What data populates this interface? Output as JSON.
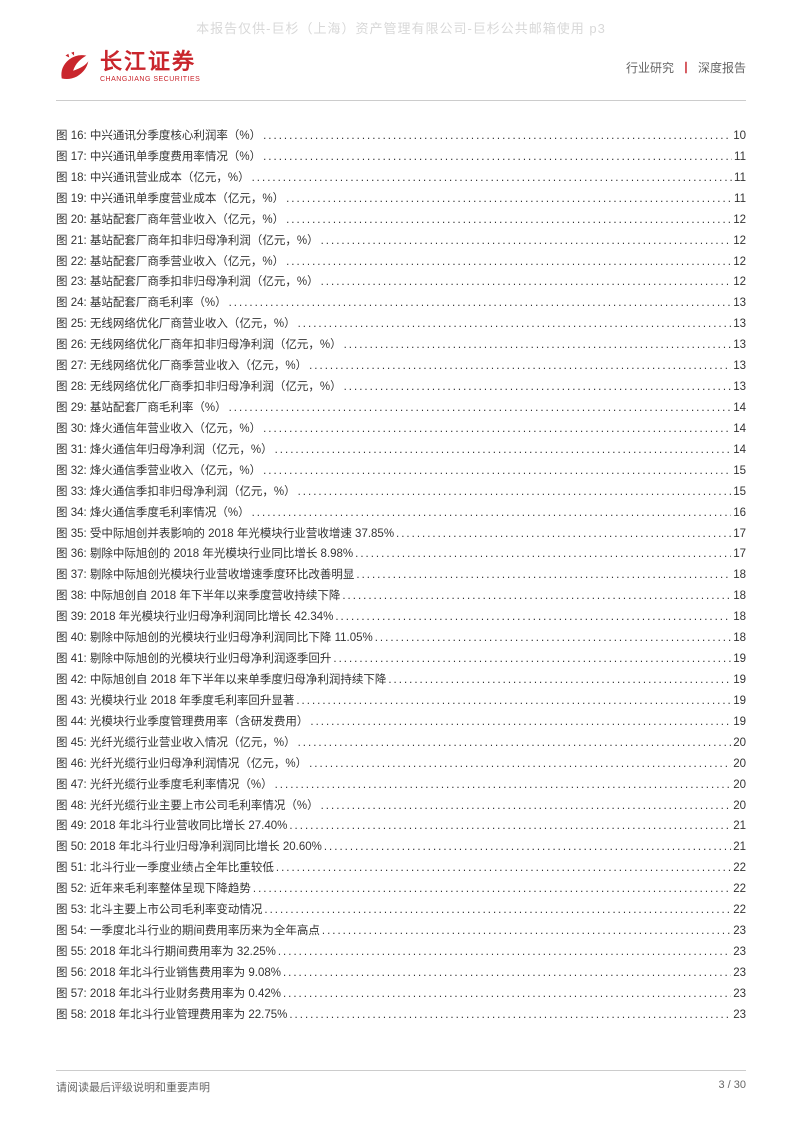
{
  "watermark": "本报告仅供-巨杉（上海）资产管理有限公司-巨杉公共邮箱使用 p3",
  "logo": {
    "cn": "长江证券",
    "en": "CHANGJIANG SECURITIES"
  },
  "header": {
    "left": "行业研究",
    "right": "深度报告"
  },
  "footer": {
    "left": "请阅读最后评级说明和重要声明",
    "right": "3 / 30"
  },
  "toc": [
    {
      "label": "图 16: 中兴通讯分季度核心利润率（%）",
      "page": "10"
    },
    {
      "label": "图 17: 中兴通讯单季度费用率情况（%）",
      "page": "11"
    },
    {
      "label": "图 18: 中兴通讯营业成本（亿元，%）",
      "page": "11"
    },
    {
      "label": "图 19: 中兴通讯单季度营业成本（亿元，%）",
      "page": "11"
    },
    {
      "label": "图 20: 基站配套厂商年营业收入（亿元，%）",
      "page": "12"
    },
    {
      "label": "图 21: 基站配套厂商年扣非归母净利润（亿元，%）",
      "page": "12"
    },
    {
      "label": "图 22: 基站配套厂商季营业收入（亿元，%）",
      "page": "12"
    },
    {
      "label": "图 23: 基站配套厂商季扣非归母净利润（亿元，%）",
      "page": "12"
    },
    {
      "label": "图 24: 基站配套厂商毛利率（%）",
      "page": "13"
    },
    {
      "label": "图 25: 无线网络优化厂商营业收入（亿元，%）",
      "page": "13"
    },
    {
      "label": "图 26: 无线网络优化厂商年扣非归母净利润（亿元，%）",
      "page": "13"
    },
    {
      "label": "图 27: 无线网络优化厂商季营业收入（亿元，%）",
      "page": "13"
    },
    {
      "label": "图 28: 无线网络优化厂商季扣非归母净利润（亿元，%）",
      "page": "13"
    },
    {
      "label": "图 29: 基站配套厂商毛利率（%）",
      "page": "14"
    },
    {
      "label": "图 30: 烽火通信年营业收入（亿元，%）",
      "page": "14"
    },
    {
      "label": "图 31: 烽火通信年归母净利润（亿元，%）",
      "page": "14"
    },
    {
      "label": "图 32: 烽火通信季营业收入（亿元，%）",
      "page": "15"
    },
    {
      "label": "图 33: 烽火通信季扣非归母净利润（亿元，%）",
      "page": "15"
    },
    {
      "label": "图 34: 烽火通信季度毛利率情况（%）",
      "page": "16"
    },
    {
      "label": "图 35: 受中际旭创并表影响的 2018 年光模块行业营收增速 37.85%",
      "page": "17"
    },
    {
      "label": "图 36: 剔除中际旭创的 2018 年光模块行业同比增长 8.98%",
      "page": "17"
    },
    {
      "label": "图 37: 剔除中际旭创光模块行业营收增速季度环比改善明显",
      "page": "18"
    },
    {
      "label": "图 38: 中际旭创自 2018 年下半年以来季度营收持续下降",
      "page": "18"
    },
    {
      "label": "图 39: 2018 年光模块行业归母净利润同比增长 42.34%",
      "page": "18"
    },
    {
      "label": "图 40: 剔除中际旭创的光模块行业归母净利润同比下降 11.05%",
      "page": "18"
    },
    {
      "label": "图 41: 剔除中际旭创的光模块行业归母净利润逐季回升",
      "page": "19"
    },
    {
      "label": "图 42: 中际旭创自 2018 年下半年以来单季度归母净利润持续下降",
      "page": "19"
    },
    {
      "label": "图 43: 光模块行业 2018 年季度毛利率回升显著",
      "page": "19"
    },
    {
      "label": "图 44: 光模块行业季度管理费用率（含研发费用）",
      "page": "19"
    },
    {
      "label": "图 45: 光纤光缆行业营业收入情况（亿元，%）",
      "page": "20"
    },
    {
      "label": "图 46: 光纤光缆行业归母净利润情况（亿元，%）",
      "page": "20"
    },
    {
      "label": "图 47: 光纤光缆行业季度毛利率情况（%）",
      "page": "20"
    },
    {
      "label": "图 48: 光纤光缆行业主要上市公司毛利率情况（%）",
      "page": "20"
    },
    {
      "label": "图 49: 2018 年北斗行业营收同比增长 27.40%",
      "page": "21"
    },
    {
      "label": "图 50: 2018 年北斗行业归母净利润同比增长 20.60%",
      "page": "21"
    },
    {
      "label": "图 51: 北斗行业一季度业绩占全年比重较低",
      "page": "22"
    },
    {
      "label": "图 52: 近年来毛利率整体呈现下降趋势",
      "page": "22"
    },
    {
      "label": "图 53: 北斗主要上市公司毛利率变动情况",
      "page": "22"
    },
    {
      "label": "图 54: 一季度北斗行业的期间费用率历来为全年高点",
      "page": "23"
    },
    {
      "label": "图 55: 2018 年北斗行期间费用率为 32.25%",
      "page": "23"
    },
    {
      "label": "图 56: 2018 年北斗行业销售费用率为 9.08%",
      "page": "23"
    },
    {
      "label": "图 57: 2018 年北斗行业财务费用率为 0.42%",
      "page": "23"
    },
    {
      "label": "图 58: 2018 年北斗行业管理费用率为 22.75%",
      "page": "23"
    }
  ]
}
